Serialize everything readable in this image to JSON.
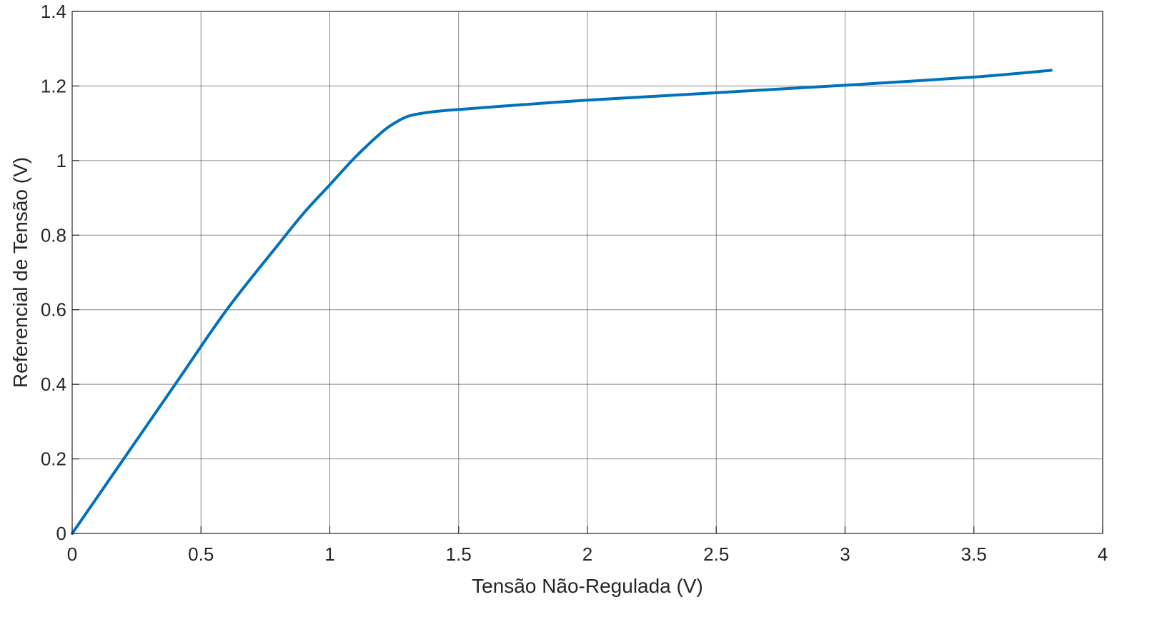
{
  "chart_data": {
    "type": "line",
    "title": "",
    "xlabel": "Tensão Não-Regulada (V)",
    "ylabel": "Referencial de Tensão (V)",
    "xlim": [
      0,
      4
    ],
    "ylim": [
      0,
      1.4
    ],
    "xticks": [
      "0",
      "0.5",
      "1",
      "1.5",
      "2",
      "2.5",
      "3",
      "3.5",
      "4"
    ],
    "yticks": [
      "0",
      "0.2",
      "0.4",
      "0.6",
      "0.8",
      "1",
      "1.2",
      "1.4"
    ],
    "grid": true,
    "legend": false,
    "series": [
      {
        "color": "#0072BD",
        "x": [
          0,
          0.2,
          0.4,
          0.6,
          0.8,
          0.9,
          1.0,
          1.1,
          1.2,
          1.25,
          1.3,
          1.35,
          1.4,
          1.5,
          1.75,
          2.0,
          2.5,
          3.0,
          3.5,
          3.8
        ],
        "y": [
          0,
          0.2,
          0.4,
          0.6,
          0.775,
          0.86,
          0.935,
          1.01,
          1.075,
          1.1,
          1.118,
          1.126,
          1.131,
          1.137,
          1.15,
          1.162,
          1.182,
          1.202,
          1.224,
          1.242
        ]
      }
    ]
  }
}
